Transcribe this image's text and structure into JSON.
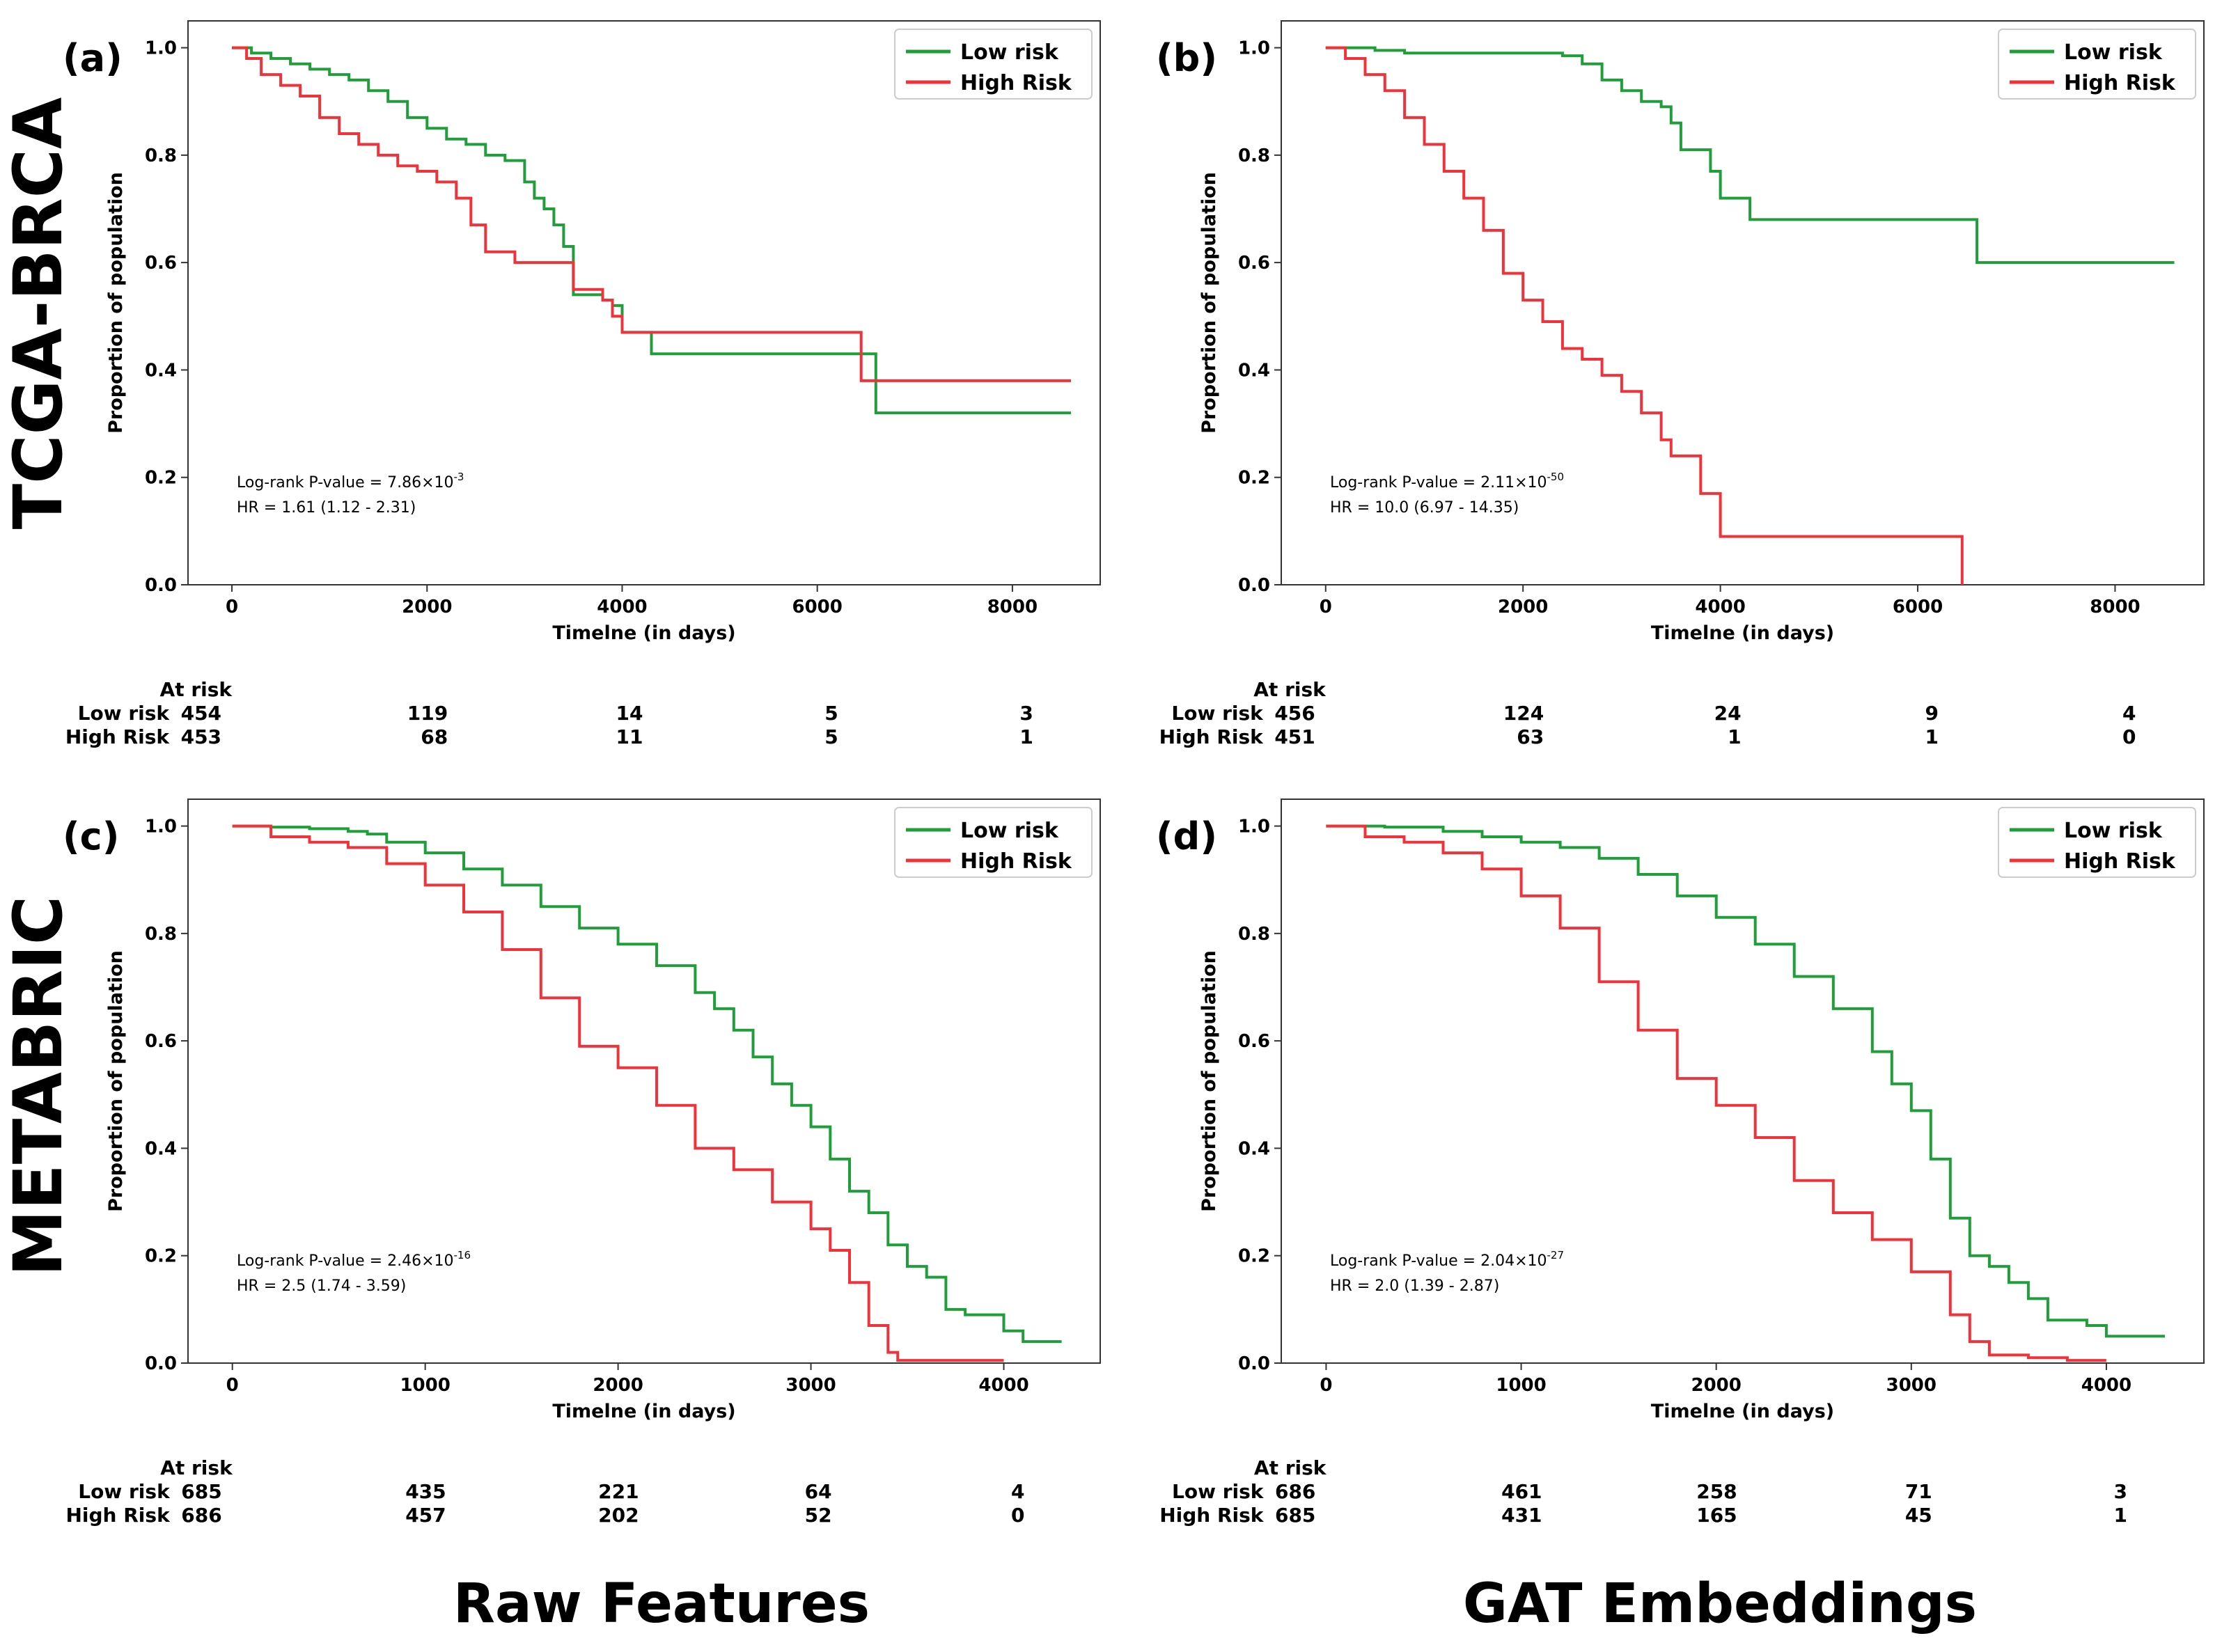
{
  "figure": {
    "row_labels": [
      "TCGA-BRCA",
      "METABRIC"
    ],
    "column_labels": [
      "Raw Features",
      "GAT Embeddings"
    ],
    "colors": {
      "low": "#1f9e3a",
      "high": "#f0333a"
    }
  },
  "chart_data": [
    {
      "type": "line",
      "panel": "(a)",
      "xlabel": "Timelne (in days)",
      "ylabel": "Proportion of population",
      "xlim": [
        -450,
        8900
      ],
      "ylim": [
        0,
        1.05
      ],
      "xticks": [
        0,
        2000,
        4000,
        6000,
        8000
      ],
      "yticks": [
        "0.0",
        "0.2",
        "0.4",
        "0.6",
        "0.8",
        "1.0"
      ],
      "legend": [
        "Low risk",
        "High Risk"
      ],
      "legend_position": "top-right",
      "annotation": {
        "p_prefix": "Log-rank  P-value = 7.86×10",
        "p_exp": "-3",
        "hr": "HR  = 1.61 (1.12 - 2.31)"
      },
      "series": [
        {
          "name": "Low risk",
          "x": [
            0,
            200,
            400,
            600,
            800,
            1000,
            1200,
            1400,
            1600,
            1800,
            2000,
            2200,
            2400,
            2600,
            2800,
            3000,
            3100,
            3200,
            3300,
            3400,
            3500,
            3700,
            3800,
            3900,
            4000,
            4300,
            5000,
            6000,
            6500,
            6600,
            8600
          ],
          "y": [
            1.0,
            0.99,
            0.98,
            0.97,
            0.96,
            0.95,
            0.94,
            0.92,
            0.9,
            0.87,
            0.85,
            0.83,
            0.82,
            0.8,
            0.79,
            0.75,
            0.72,
            0.7,
            0.67,
            0.63,
            0.54,
            0.54,
            0.53,
            0.52,
            0.47,
            0.43,
            0.43,
            0.43,
            0.43,
            0.32,
            0.32
          ]
        },
        {
          "name": "High Risk",
          "x": [
            0,
            150,
            300,
            500,
            700,
            900,
            1100,
            1300,
            1500,
            1700,
            1900,
            2100,
            2300,
            2450,
            2600,
            2700,
            2900,
            3000,
            3400,
            3500,
            3700,
            3800,
            3900,
            4000,
            5000,
            6000,
            6400,
            6450,
            8600
          ],
          "y": [
            1.0,
            0.98,
            0.95,
            0.93,
            0.91,
            0.87,
            0.84,
            0.82,
            0.8,
            0.78,
            0.77,
            0.75,
            0.72,
            0.67,
            0.62,
            0.62,
            0.6,
            0.6,
            0.6,
            0.55,
            0.55,
            0.53,
            0.5,
            0.47,
            0.47,
            0.47,
            0.47,
            0.38,
            0.38
          ]
        }
      ],
      "at_risk": {
        "header": "At risk",
        "rows": [
          {
            "label": "Low risk",
            "values": [
              "454",
              "119",
              "14",
              "5",
              "3"
            ]
          },
          {
            "label": "High Risk",
            "values": [
              "453",
              "68",
              "11",
              "5",
              "1"
            ]
          }
        ]
      }
    },
    {
      "type": "line",
      "panel": "(b)",
      "xlabel": "Timelne (in days)",
      "ylabel": "Proportion of population",
      "xlim": [
        -450,
        8900
      ],
      "ylim": [
        0,
        1.05
      ],
      "xticks": [
        0,
        2000,
        4000,
        6000,
        8000
      ],
      "yticks": [
        "0.0",
        "0.2",
        "0.4",
        "0.6",
        "0.8",
        "1.0"
      ],
      "legend": [
        "Low risk",
        "High Risk"
      ],
      "legend_position": "top-right",
      "annotation": {
        "p_prefix": "Log-rank  P-value = 2.11×10",
        "p_exp": "-50",
        "hr": "HR  = 10.0 (6.97 - 14.35)"
      },
      "series": [
        {
          "name": "Low risk",
          "x": [
            0,
            300,
            500,
            800,
            1000,
            2000,
            2400,
            2600,
            2800,
            3000,
            3200,
            3400,
            3500,
            3600,
            3800,
            3900,
            4000,
            4200,
            4300,
            5000,
            6000,
            6500,
            6600,
            8600
          ],
          "y": [
            1.0,
            1.0,
            0.995,
            0.99,
            0.99,
            0.99,
            0.985,
            0.97,
            0.94,
            0.92,
            0.9,
            0.89,
            0.86,
            0.81,
            0.81,
            0.77,
            0.72,
            0.72,
            0.68,
            0.68,
            0.68,
            0.68,
            0.6,
            0.6
          ]
        },
        {
          "name": "High Risk",
          "x": [
            0,
            200,
            400,
            600,
            800,
            1000,
            1200,
            1400,
            1600,
            1800,
            2000,
            2200,
            2400,
            2600,
            2800,
            3000,
            3200,
            3400,
            3500,
            3700,
            3800,
            3900,
            4000,
            5000,
            6000,
            6400,
            6450
          ],
          "y": [
            1.0,
            0.98,
            0.95,
            0.92,
            0.87,
            0.82,
            0.77,
            0.72,
            0.66,
            0.58,
            0.53,
            0.49,
            0.44,
            0.42,
            0.39,
            0.36,
            0.32,
            0.27,
            0.24,
            0.24,
            0.17,
            0.17,
            0.09,
            0.09,
            0.09,
            0.09,
            0.0
          ]
        }
      ],
      "at_risk": {
        "header": "At risk",
        "rows": [
          {
            "label": "Low risk",
            "values": [
              "456",
              "124",
              "24",
              "9",
              "4"
            ]
          },
          {
            "label": "High Risk",
            "values": [
              "451",
              "63",
              "1",
              "1",
              "0"
            ]
          }
        ]
      }
    },
    {
      "type": "line",
      "panel": "(c)",
      "xlabel": "Timelne (in days)",
      "ylabel": "Proportion of population",
      "xlim": [
        -230,
        4500
      ],
      "ylim": [
        0,
        1.05
      ],
      "xticks": [
        0,
        1000,
        2000,
        3000,
        4000
      ],
      "yticks": [
        "0.0",
        "0.2",
        "0.4",
        "0.6",
        "0.8",
        "1.0"
      ],
      "legend": [
        "Low risk",
        "High Risk"
      ],
      "legend_position": "top-right",
      "annotation": {
        "p_prefix": "Log-rank  P-value = 2.46×10",
        "p_exp": "-16",
        "hr": "HR  = 2.5 (1.74 - 3.59)"
      },
      "series": [
        {
          "name": "Low risk",
          "x": [
            0,
            200,
            400,
            600,
            700,
            800,
            1000,
            1200,
            1400,
            1600,
            1800,
            2000,
            2200,
            2400,
            2500,
            2600,
            2700,
            2800,
            2900,
            3000,
            3100,
            3200,
            3300,
            3400,
            3500,
            3600,
            3700,
            3800,
            3900,
            4000,
            4100,
            4300
          ],
          "y": [
            1.0,
            0.998,
            0.995,
            0.99,
            0.985,
            0.97,
            0.95,
            0.92,
            0.89,
            0.85,
            0.81,
            0.78,
            0.74,
            0.69,
            0.66,
            0.62,
            0.57,
            0.52,
            0.48,
            0.44,
            0.38,
            0.32,
            0.28,
            0.22,
            0.18,
            0.16,
            0.1,
            0.09,
            0.09,
            0.06,
            0.04,
            0.04
          ]
        },
        {
          "name": "High Risk",
          "x": [
            0,
            200,
            400,
            600,
            800,
            1000,
            1200,
            1400,
            1600,
            1800,
            2000,
            2200,
            2400,
            2600,
            2800,
            3000,
            3100,
            3200,
            3300,
            3400,
            3450,
            3600,
            3800,
            4000
          ],
          "y": [
            1.0,
            0.98,
            0.97,
            0.96,
            0.93,
            0.89,
            0.84,
            0.77,
            0.68,
            0.59,
            0.55,
            0.48,
            0.4,
            0.36,
            0.3,
            0.25,
            0.21,
            0.15,
            0.07,
            0.02,
            0.005,
            0.005,
            0.005,
            0.005
          ]
        }
      ],
      "at_risk": {
        "header": "At risk",
        "rows": [
          {
            "label": "Low risk",
            "values": [
              "685",
              "435",
              "221",
              "64",
              "4"
            ]
          },
          {
            "label": "High Risk",
            "values": [
              "686",
              "457",
              "202",
              "52",
              "0"
            ]
          }
        ]
      }
    },
    {
      "type": "line",
      "panel": "(d)",
      "xlabel": "Timelne (in days)",
      "ylabel": "Proportion of population",
      "xlim": [
        -230,
        4500
      ],
      "ylim": [
        0,
        1.05
      ],
      "xticks": [
        0,
        1000,
        2000,
        3000,
        4000
      ],
      "yticks": [
        "0.0",
        "0.2",
        "0.4",
        "0.6",
        "0.8",
        "1.0"
      ],
      "legend": [
        "Low risk",
        "High Risk"
      ],
      "legend_position": "top-right",
      "annotation": {
        "p_prefix": "Log-rank  P-value = 2.04×10",
        "p_exp": "-27",
        "hr": "HR  = 2.0 (1.39 - 2.87)"
      },
      "series": [
        {
          "name": "Low risk",
          "x": [
            0,
            300,
            600,
            800,
            1000,
            1200,
            1400,
            1600,
            1800,
            2000,
            2200,
            2400,
            2600,
            2800,
            2900,
            3000,
            3100,
            3200,
            3300,
            3400,
            3500,
            3600,
            3700,
            3800,
            3900,
            4000,
            4100,
            4300
          ],
          "y": [
            1.0,
            0.998,
            0.99,
            0.98,
            0.97,
            0.96,
            0.94,
            0.91,
            0.87,
            0.83,
            0.78,
            0.72,
            0.66,
            0.58,
            0.52,
            0.47,
            0.38,
            0.27,
            0.2,
            0.18,
            0.15,
            0.12,
            0.08,
            0.08,
            0.07,
            0.05,
            0.05,
            0.05
          ]
        },
        {
          "name": "High Risk",
          "x": [
            0,
            200,
            400,
            600,
            800,
            1000,
            1200,
            1400,
            1600,
            1800,
            2000,
            2200,
            2400,
            2600,
            2800,
            3000,
            3200,
            3300,
            3400,
            3600,
            3800,
            4000
          ],
          "y": [
            1.0,
            0.98,
            0.97,
            0.95,
            0.92,
            0.87,
            0.81,
            0.71,
            0.62,
            0.53,
            0.48,
            0.42,
            0.34,
            0.28,
            0.23,
            0.17,
            0.09,
            0.04,
            0.015,
            0.01,
            0.005,
            0.005
          ]
        }
      ],
      "at_risk": {
        "header": "At risk",
        "rows": [
          {
            "label": "Low risk",
            "values": [
              "686",
              "461",
              "258",
              "71",
              "3"
            ]
          },
          {
            "label": "High Risk",
            "values": [
              "685",
              "431",
              "165",
              "45",
              "1"
            ]
          }
        ]
      }
    }
  ]
}
